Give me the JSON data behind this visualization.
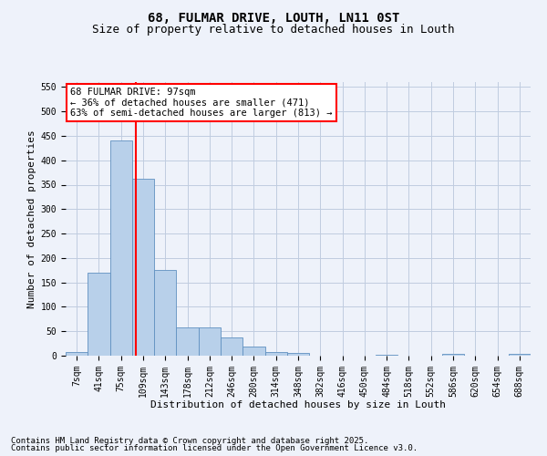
{
  "title": "68, FULMAR DRIVE, LOUTH, LN11 0ST",
  "subtitle": "Size of property relative to detached houses in Louth",
  "xlabel": "Distribution of detached houses by size in Louth",
  "ylabel": "Number of detached properties",
  "categories": [
    "7sqm",
    "41sqm",
    "75sqm",
    "109sqm",
    "143sqm",
    "178sqm",
    "212sqm",
    "246sqm",
    "280sqm",
    "314sqm",
    "348sqm",
    "382sqm",
    "416sqm",
    "450sqm",
    "484sqm",
    "518sqm",
    "552sqm",
    "586sqm",
    "620sqm",
    "654sqm",
    "688sqm"
  ],
  "values": [
    7,
    170,
    440,
    363,
    175,
    57,
    57,
    37,
    18,
    8,
    5,
    0,
    0,
    0,
    2,
    0,
    0,
    3,
    0,
    0,
    3
  ],
  "bar_color": "#b8d0ea",
  "bar_edge_color": "#6090c0",
  "grid_color": "#c0cce0",
  "background_color": "#eef2fa",
  "vline_x": 2.65,
  "vline_color": "red",
  "annotation_text": "68 FULMAR DRIVE: 97sqm\n← 36% of detached houses are smaller (471)\n63% of semi-detached houses are larger (813) →",
  "annotation_box_color": "red",
  "annotation_box_fill": "white",
  "ylim": [
    0,
    560
  ],
  "yticks": [
    0,
    50,
    100,
    150,
    200,
    250,
    300,
    350,
    400,
    450,
    500,
    550
  ],
  "footer1": "Contains HM Land Registry data © Crown copyright and database right 2025.",
  "footer2": "Contains public sector information licensed under the Open Government Licence v3.0.",
  "title_fontsize": 10,
  "subtitle_fontsize": 9,
  "label_fontsize": 8,
  "tick_fontsize": 7,
  "annotation_fontsize": 7.5,
  "footer_fontsize": 6.5
}
